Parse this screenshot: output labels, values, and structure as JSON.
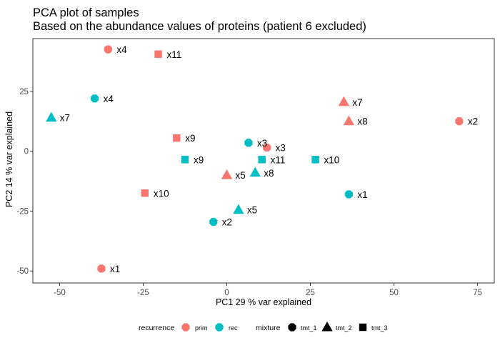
{
  "chart_data": {
    "type": "scatter",
    "title": "PCA plot of samples",
    "subtitle": "Based on the abundance values of proteins (patient 6 excluded)",
    "xlabel": "PC1 29 % var explained",
    "ylabel": "PC2 14 % var explained",
    "xlim": [
      -58,
      80
    ],
    "ylim": [
      -55,
      47
    ],
    "xticks": [
      -50,
      -25,
      0,
      25,
      50,
      75
    ],
    "yticks": [
      -50,
      -25,
      0,
      25
    ],
    "grid": false,
    "legend_position": "bottom",
    "colors": {
      "prim": "#F8766D",
      "rec": "#00BFC4"
    },
    "legends": [
      {
        "title": "recurrence",
        "entries": [
          {
            "label": "prim",
            "color": "#F8766D"
          },
          {
            "label": "rec",
            "color": "#00BFC4"
          }
        ]
      },
      {
        "title": "mixture",
        "entries": [
          {
            "label": "tmt_1",
            "shape": "circle"
          },
          {
            "label": "tmt_2",
            "shape": "triangle"
          },
          {
            "label": "tmt_3",
            "shape": "square"
          }
        ]
      }
    ],
    "points": [
      {
        "label": "x4",
        "x": -35.5,
        "y": 42.5,
        "recurrence": "prim",
        "mixture": "tmt_1"
      },
      {
        "label": "x11",
        "x": -20.5,
        "y": 40.5,
        "recurrence": "prim",
        "mixture": "tmt_3"
      },
      {
        "label": "x4",
        "x": -39.5,
        "y": 22,
        "recurrence": "rec",
        "mixture": "tmt_1"
      },
      {
        "label": "x7",
        "x": -52.5,
        "y": 14,
        "recurrence": "rec",
        "mixture": "tmt_2"
      },
      {
        "label": "x7",
        "x": 35,
        "y": 20.5,
        "recurrence": "prim",
        "mixture": "tmt_2"
      },
      {
        "label": "x8",
        "x": 36.5,
        "y": 12.5,
        "recurrence": "prim",
        "mixture": "tmt_2"
      },
      {
        "label": "x2",
        "x": 69.5,
        "y": 12.5,
        "recurrence": "prim",
        "mixture": "tmt_1"
      },
      {
        "label": "x9",
        "x": -15,
        "y": 5.5,
        "recurrence": "prim",
        "mixture": "tmt_3"
      },
      {
        "label": "x3",
        "x": 6.5,
        "y": 3.5,
        "recurrence": "rec",
        "mixture": "tmt_1"
      },
      {
        "label": "x3",
        "x": 12,
        "y": 1.5,
        "recurrence": "prim",
        "mixture": "tmt_1"
      },
      {
        "label": "x9",
        "x": -12.5,
        "y": -3.5,
        "recurrence": "rec",
        "mixture": "tmt_3"
      },
      {
        "label": "x11",
        "x": 10.5,
        "y": -3.5,
        "recurrence": "rec",
        "mixture": "tmt_3"
      },
      {
        "label": "x10",
        "x": 26.5,
        "y": -3.5,
        "recurrence": "rec",
        "mixture": "tmt_3"
      },
      {
        "label": "x8",
        "x": 8.5,
        "y": -9,
        "recurrence": "rec",
        "mixture": "tmt_2"
      },
      {
        "label": "x5",
        "x": 0,
        "y": -10,
        "recurrence": "prim",
        "mixture": "tmt_2"
      },
      {
        "label": "x10",
        "x": -24.5,
        "y": -17.5,
        "recurrence": "prim",
        "mixture": "tmt_3"
      },
      {
        "label": "x1",
        "x": 36.5,
        "y": -18,
        "recurrence": "rec",
        "mixture": "tmt_1"
      },
      {
        "label": "x5",
        "x": 3.5,
        "y": -24.5,
        "recurrence": "rec",
        "mixture": "tmt_2"
      },
      {
        "label": "x2",
        "x": -4,
        "y": -29.5,
        "recurrence": "rec",
        "mixture": "tmt_1"
      },
      {
        "label": "x1",
        "x": -37.5,
        "y": -49,
        "recurrence": "prim",
        "mixture": "tmt_1"
      }
    ]
  }
}
